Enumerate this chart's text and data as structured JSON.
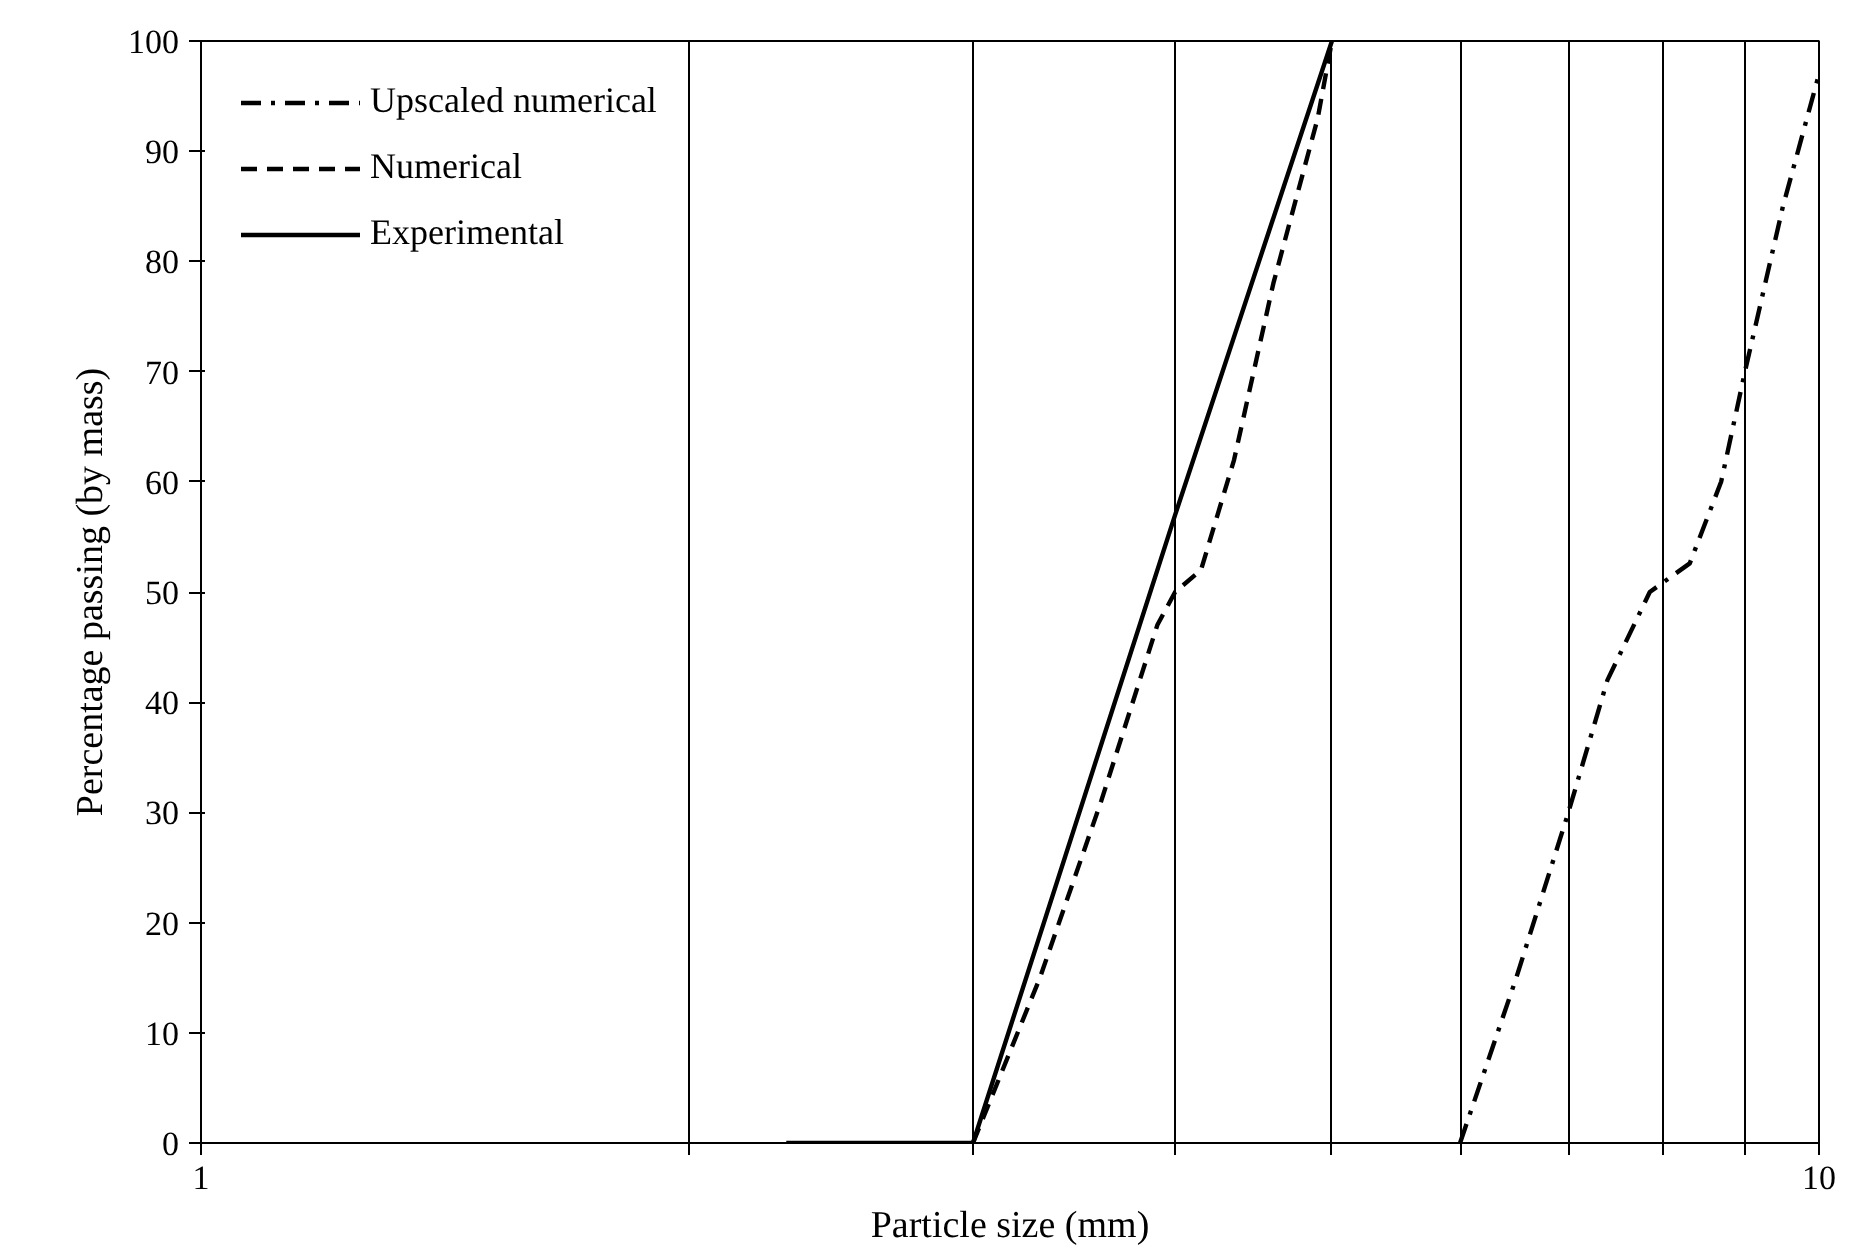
{
  "chart_data": {
    "type": "line",
    "xlabel": "Particle size (mm)",
    "ylabel": "Percentage passing (by mass)",
    "log": "x",
    "xlim": [
      1,
      10
    ],
    "xticks": [
      1,
      {
        "value": 2,
        "label": null
      },
      {
        "value": 3,
        "label": null
      },
      {
        "value": 4,
        "label": null
      },
      {
        "value": 5,
        "label": null
      },
      {
        "value": 6,
        "label": null
      },
      {
        "value": 7,
        "label": null
      },
      {
        "value": 8,
        "label": null
      },
      {
        "value": 9,
        "label": null
      },
      10
    ],
    "ylim": [
      0,
      100
    ],
    "yticks": [
      0,
      10,
      20,
      30,
      40,
      50,
      60,
      70,
      80,
      90,
      100
    ],
    "grid": "x",
    "legend": "top left",
    "marker": "none",
    "series": [
      {
        "name": "Upscaled numerical",
        "color": "#000000",
        "line_style": "dashdot",
        "x": [
          6,
          6.5,
          7,
          7.4,
          7.86,
          8.32,
          8.7,
          9,
          9.5,
          10
        ],
        "values": [
          0,
          15,
          30,
          42,
          50,
          52.6,
          60,
          70,
          85,
          97
        ]
      },
      {
        "name": "Numerical",
        "color": "#000000",
        "line_style": "dashed",
        "x": [
          3,
          3.3,
          3.6,
          3.9,
          4.0,
          4.15,
          4.35,
          4.6,
          4.9,
          5
        ],
        "values": [
          0,
          15,
          31,
          47,
          50,
          52,
          62,
          78,
          93,
          100
        ]
      },
      {
        "name": "Experimental",
        "color": "#000000",
        "line_style": "solid",
        "x": [
          2.3,
          3,
          4,
          5
        ],
        "values": [
          0,
          0,
          57,
          100
        ]
      }
    ]
  }
}
